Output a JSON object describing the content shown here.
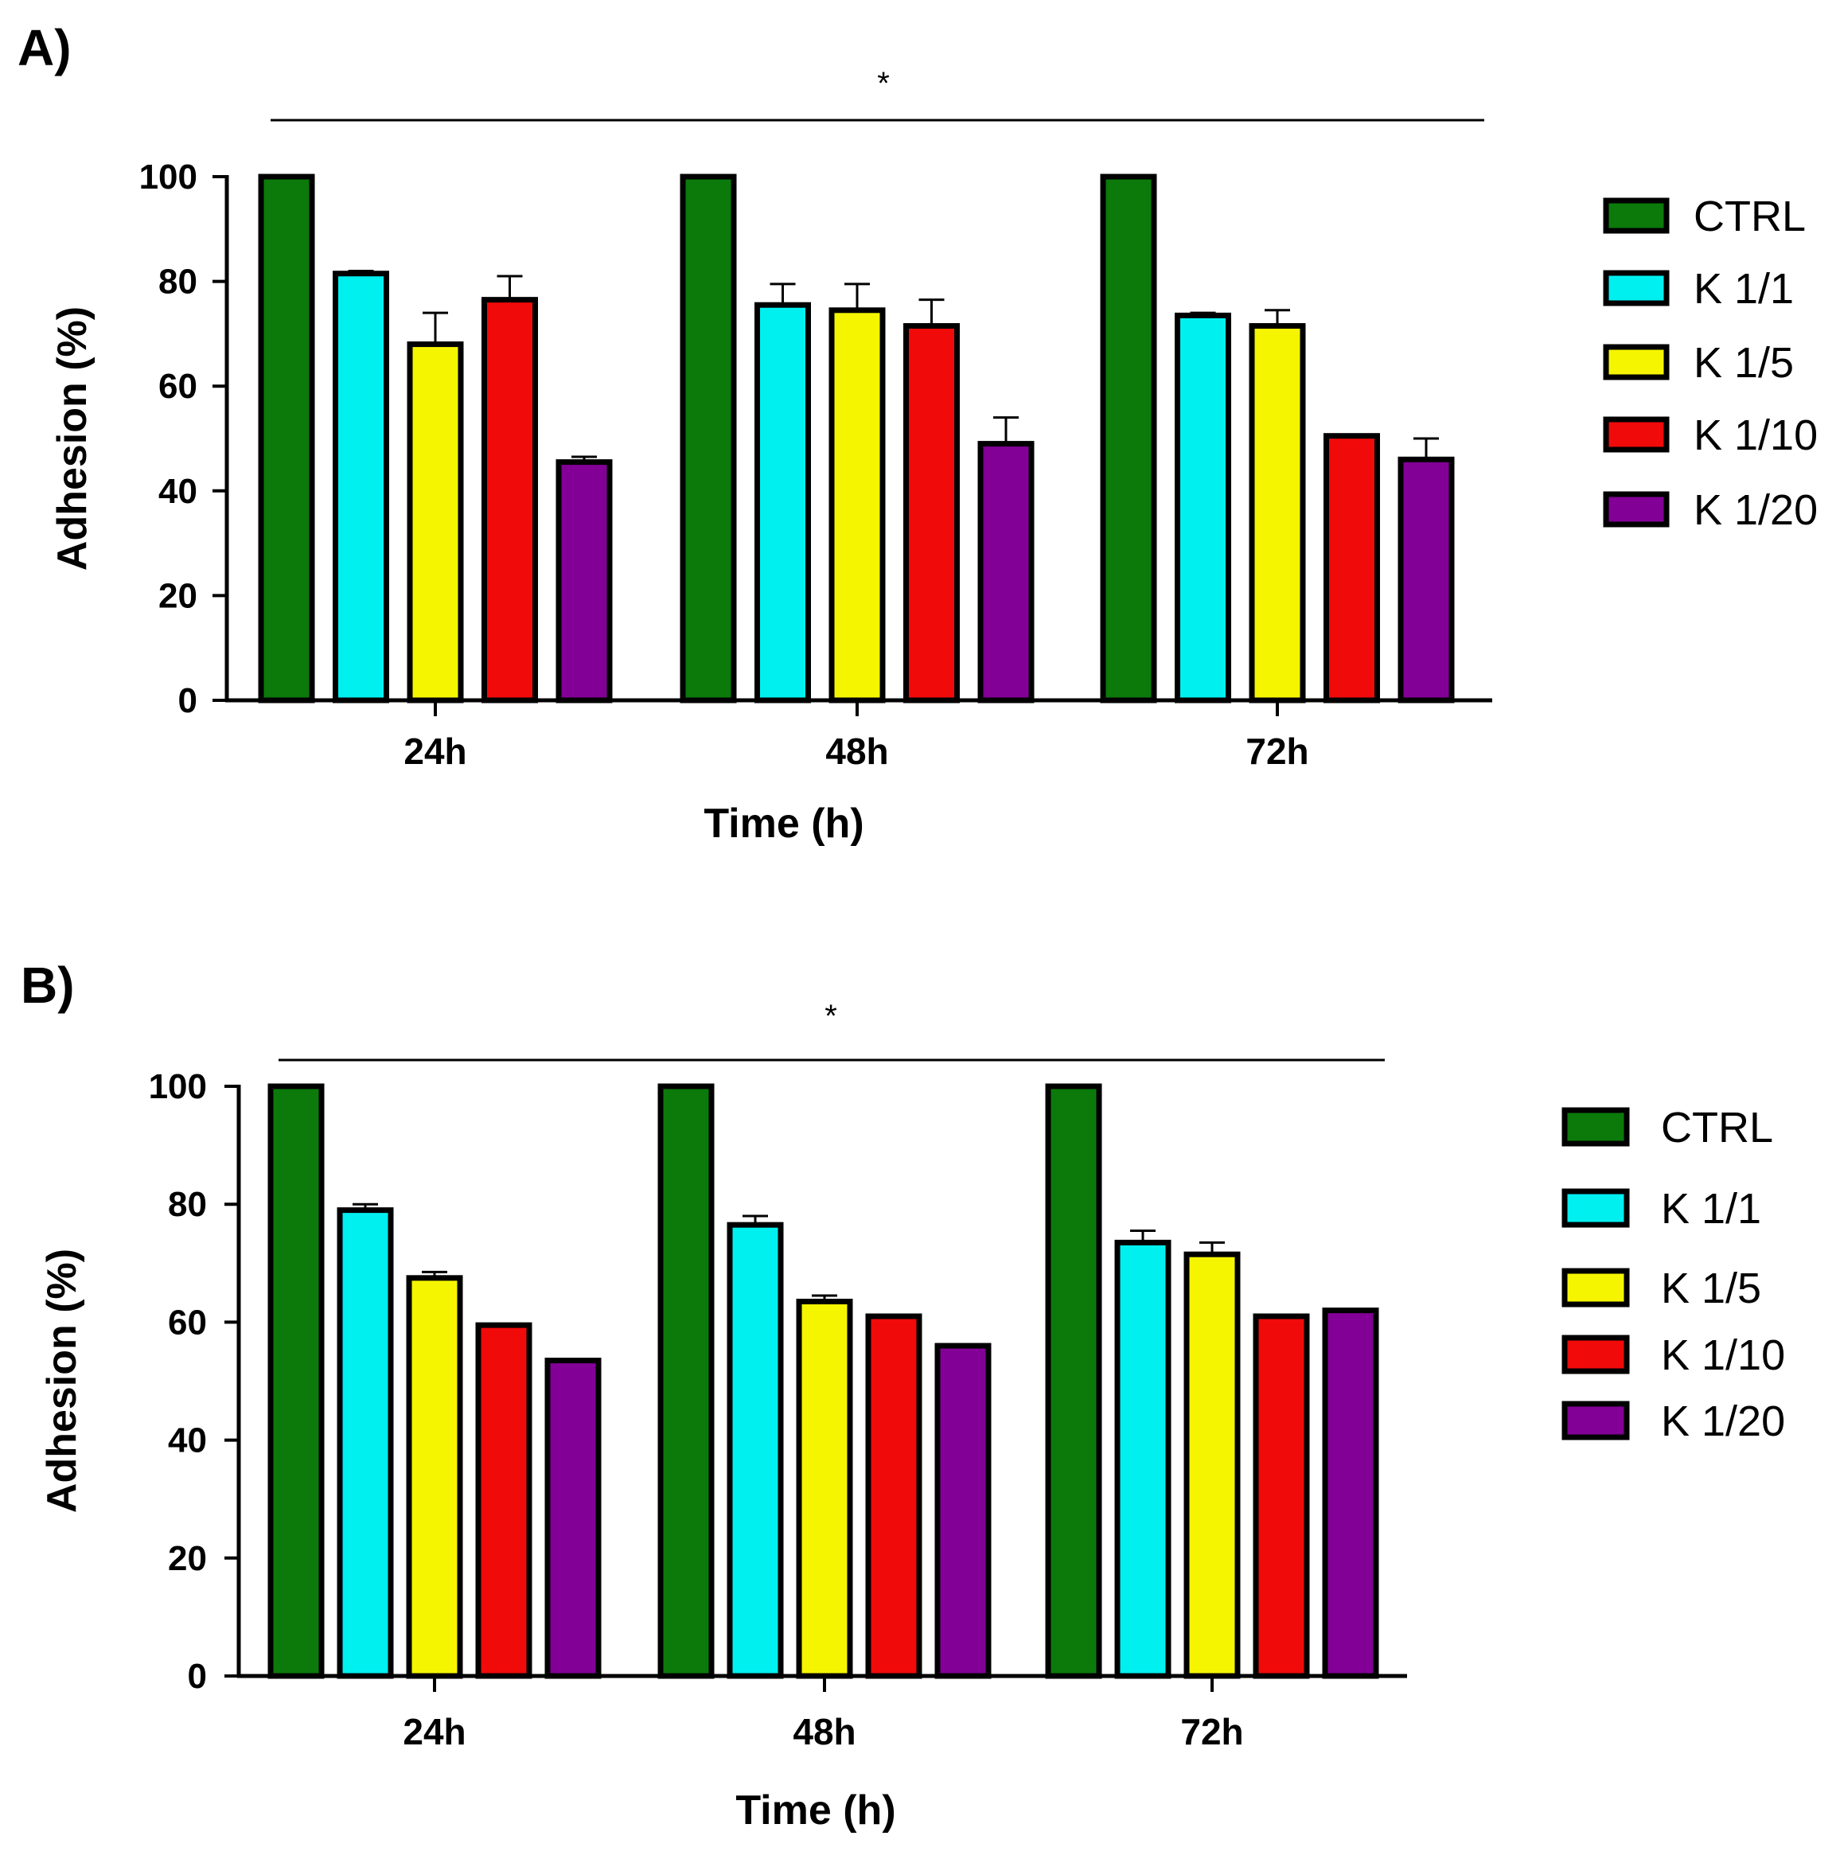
{
  "chart_data": [
    {
      "type": "bar",
      "panel": "A)",
      "significance": "*",
      "categories": [
        "24h",
        "48h",
        "72h"
      ],
      "series": [
        {
          "name": "CTRL",
          "color": "#0b7a0b",
          "values": [
            100,
            100,
            100
          ],
          "errors": [
            0,
            0,
            0
          ]
        },
        {
          "name": "K 1/1",
          "color": "#00f0f0",
          "values": [
            81.5,
            75.5,
            73.5
          ],
          "errors": [
            0.5,
            4,
            0.5
          ]
        },
        {
          "name": "K 1/5",
          "color": "#f5f500",
          "values": [
            68,
            74.5,
            71.5
          ],
          "errors": [
            6,
            5,
            3
          ]
        },
        {
          "name": "K 1/10",
          "color": "#f00a0a",
          "values": [
            76.5,
            71.5,
            50.5
          ],
          "errors": [
            4.5,
            5,
            0
          ]
        },
        {
          "name": "K 1/20",
          "color": "#820096",
          "values": [
            45.5,
            49,
            46
          ],
          "errors": [
            1,
            5,
            4
          ]
        }
      ],
      "xlabel": "Time (h)",
      "ylabel": "Adhesion (%)",
      "ylim": [
        0,
        100
      ],
      "yticks": [
        "0",
        "20",
        "40",
        "60",
        "80",
        "100"
      ],
      "legend_position": "right"
    },
    {
      "type": "bar",
      "panel": "B)",
      "significance": "*",
      "categories": [
        "24h",
        "48h",
        "72h"
      ],
      "series": [
        {
          "name": "CTRL",
          "color": "#0b7a0b",
          "values": [
            100,
            100,
            100
          ],
          "errors": [
            0,
            0,
            0
          ]
        },
        {
          "name": "K 1/1",
          "color": "#00f0f0",
          "values": [
            79,
            76.5,
            73.5
          ],
          "errors": [
            1,
            1.5,
            2
          ]
        },
        {
          "name": "K 1/5",
          "color": "#f5f500",
          "values": [
            67.5,
            63.5,
            71.5
          ],
          "errors": [
            1,
            1,
            2
          ]
        },
        {
          "name": "K 1/10",
          "color": "#f00a0a",
          "values": [
            59.5,
            61,
            61
          ],
          "errors": [
            0,
            0,
            0
          ]
        },
        {
          "name": "K 1/20",
          "color": "#820096",
          "values": [
            53.5,
            56,
            62
          ],
          "errors": [
            0,
            0,
            0
          ]
        }
      ],
      "xlabel": "Time (h)",
      "ylabel": "Adhesion (%)",
      "ylim": [
        0,
        100
      ],
      "yticks": [
        "0",
        "20",
        "40",
        "60",
        "80",
        "100"
      ],
      "legend_position": "right"
    }
  ]
}
